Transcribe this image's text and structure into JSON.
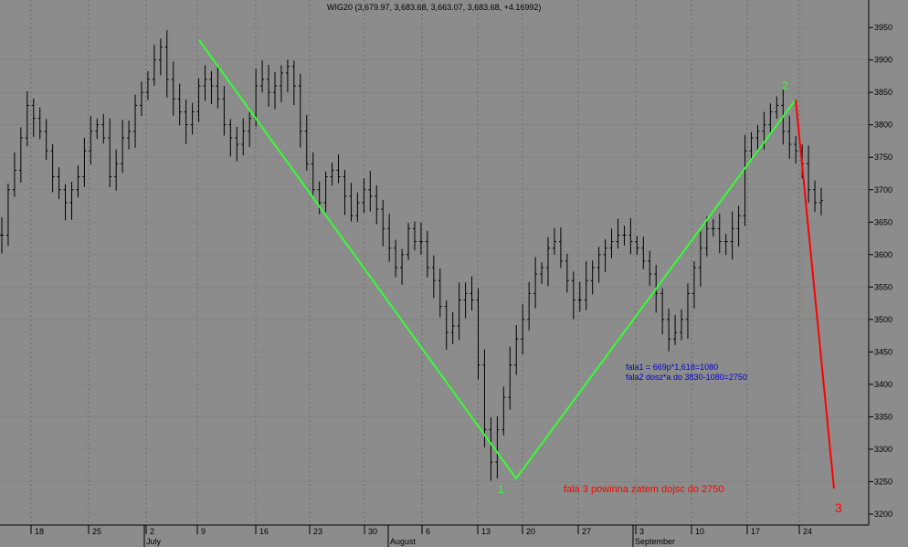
{
  "chart_data": {
    "type": "ohlc",
    "title": "WIG20 (3,679.97, 3,683.68, 3,663.07, 3,683.68, +4.16992)",
    "ylim": [
      3180,
      3980
    ],
    "y_ticks": [
      3200,
      3250,
      3300,
      3350,
      3400,
      3450,
      3500,
      3550,
      3600,
      3650,
      3700,
      3750,
      3800,
      3850,
      3900,
      3950
    ],
    "x_ticks": [
      "18",
      "25",
      "2",
      "9",
      "16",
      "23",
      "30",
      "6",
      "13",
      "20",
      "27",
      "3",
      "10",
      "17",
      "24"
    ],
    "months": [
      "July",
      "August",
      "September"
    ],
    "grid": true,
    "colors": {
      "background": "#8c8c8c",
      "bars": "#000000",
      "wave_line": "#33ff33",
      "projection": "#ff0000",
      "wave_label": "#33ff33",
      "note": "#0000cc",
      "target_text": "#ff0000"
    },
    "series": [
      {
        "values": [
          3630,
          3700,
          3730,
          3780,
          3830,
          3810,
          3790,
          3760,
          3720,
          3700,
          3680,
          3700,
          3720,
          3760,
          3790,
          3800,
          3780,
          3720,
          3740,
          3780,
          3790,
          3830,
          3850,
          3870,
          3900,
          3920,
          3870,
          3840,
          3820,
          3800,
          3820,
          3860,
          3870,
          3860,
          3840,
          3800,
          3780,
          3770,
          3790,
          3810,
          3860,
          3870,
          3850,
          3860,
          3880,
          3890,
          3860,
          3790,
          3740,
          3700,
          3680,
          3720,
          3730,
          3720,
          3690,
          3660,
          3680,
          3700,
          3690,
          3670,
          3640,
          3610,
          3580,
          3600,
          3640,
          3620,
          3620,
          3580,
          3560,
          3520,
          3480,
          3490,
          3530,
          3540,
          3530,
          3430,
          3330,
          3280,
          3330,
          3380,
          3430,
          3470,
          3500,
          3540,
          3570,
          3580,
          3610,
          3620,
          3590,
          3560,
          3530,
          3530,
          3560,
          3580,
          3600,
          3610,
          3620,
          3630,
          3630,
          3620,
          3610,
          3590,
          3570,
          3540,
          3500,
          3470,
          3480,
          3500,
          3540,
          3580,
          3610,
          3640,
          3640,
          3620,
          3620,
          3640,
          3660,
          3760,
          3780,
          3790,
          3800,
          3820,
          3830,
          3790,
          3770,
          3760,
          3740,
          3700,
          3680,
          3683.68
        ]
      }
    ],
    "annotations": [
      {
        "text": "1"
      },
      {
        "text": "2"
      },
      {
        "text": "3"
      },
      {
        "text": "fala1 = 669p*1,618=1080"
      },
      {
        "text": "fala2 dosz*a do 3830-1080=2750"
      },
      {
        "text": "fala 3 powinna zatem dojsc do 2750"
      }
    ]
  }
}
